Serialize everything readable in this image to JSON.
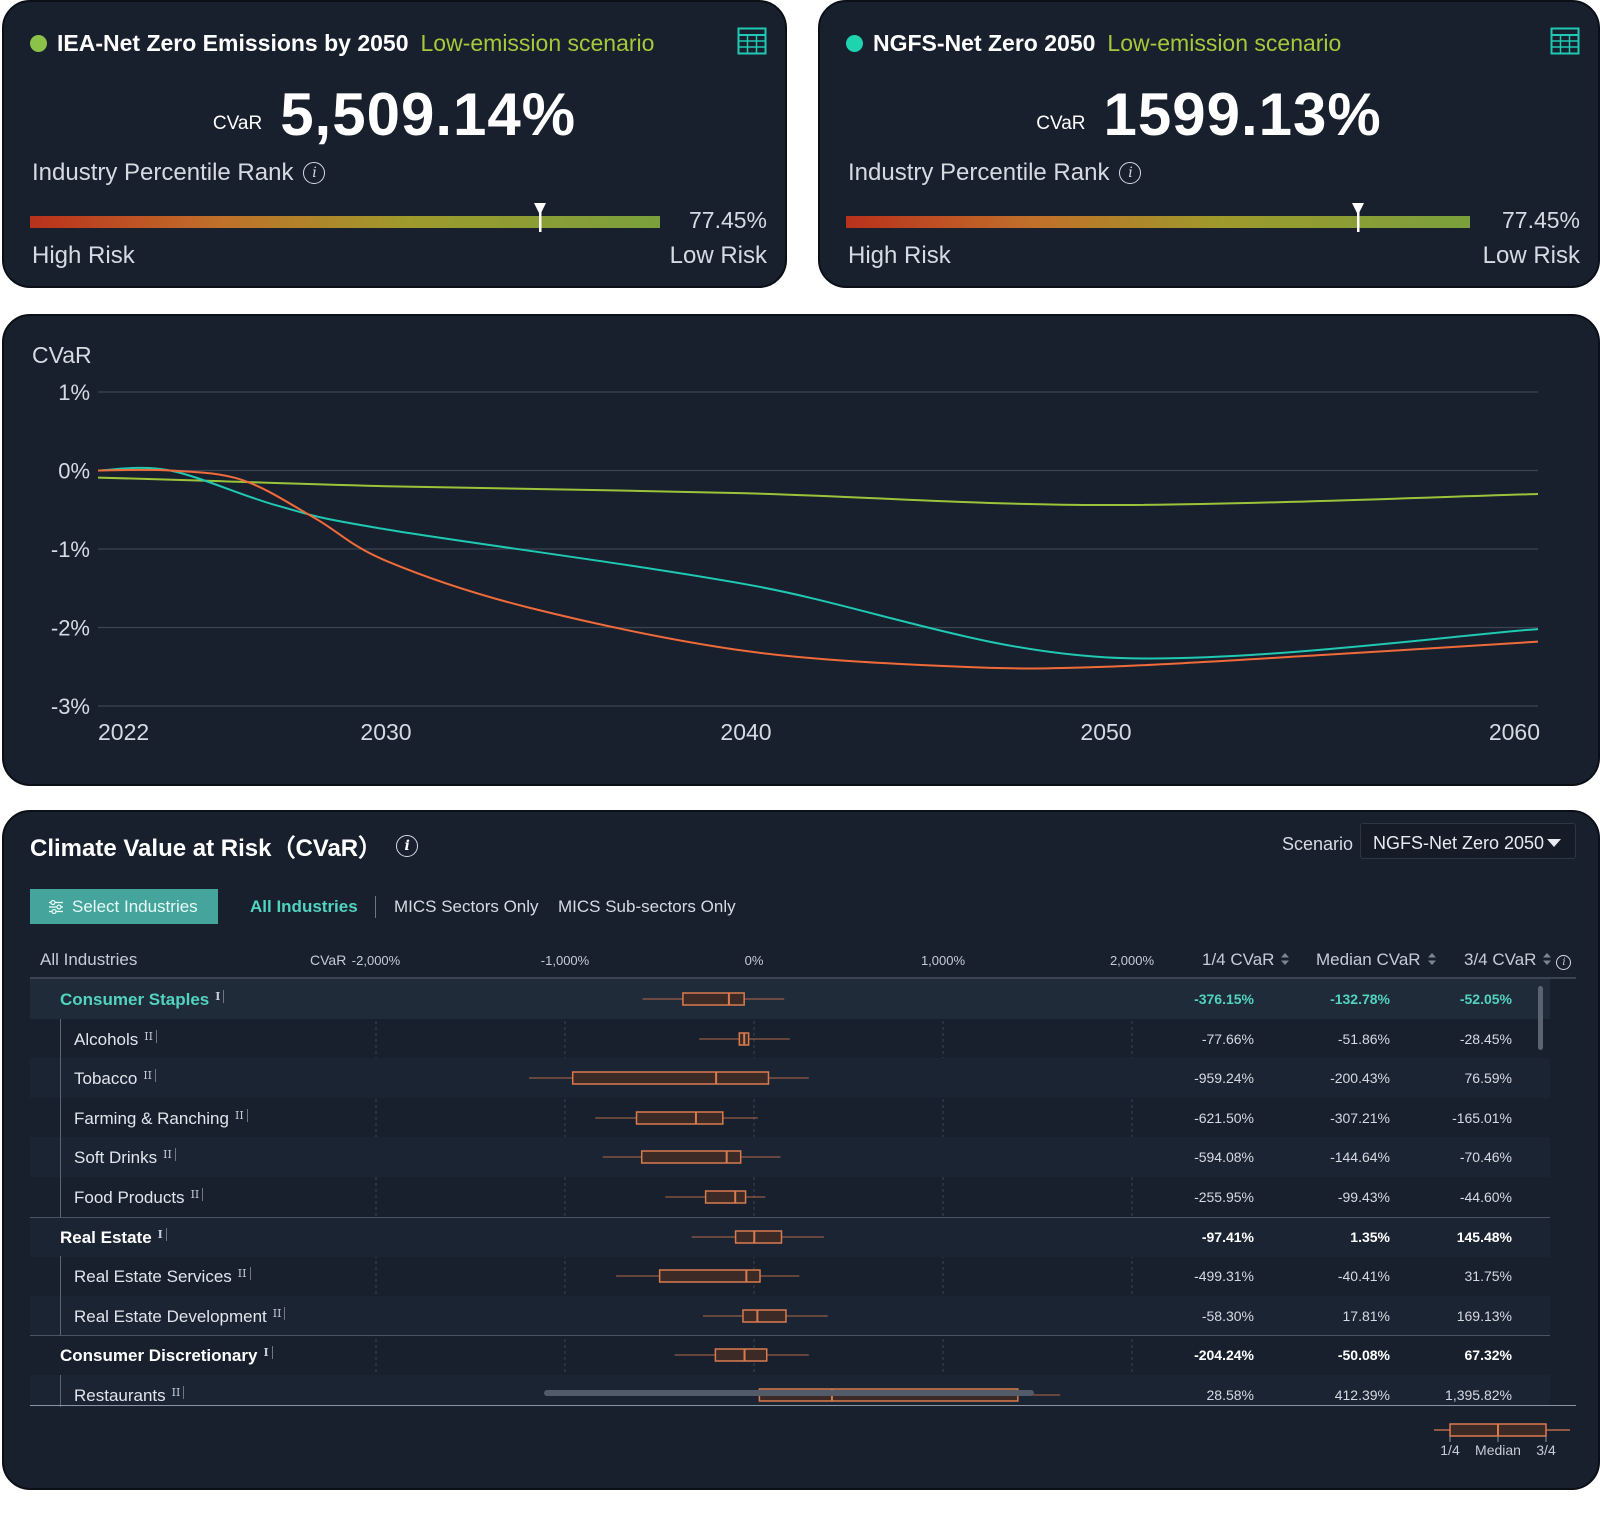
{
  "scenario_cards": [
    {
      "dot_color": "#8bc34a",
      "name": "IEA-Net Zero Emissions by 2050",
      "type": "Low-emission scenario",
      "cvar_label": "CVaR",
      "cvar_value": "5,509.14%",
      "rank_label": "Industry Percentile Rank",
      "rank_value": "77.45%",
      "rank_fraction": 0.81,
      "high_risk": "High Risk",
      "low_risk": "Low Risk",
      "icon": "table-icon"
    },
    {
      "dot_color": "#1dd3b0",
      "name": "NGFS-Net Zero 2050",
      "type": "Low-emission scenario",
      "cvar_label": "CVaR",
      "cvar_value": "1599.13%",
      "rank_label": "Industry Percentile Rank",
      "rank_value": "77.45%",
      "rank_fraction": 0.82,
      "high_risk": "High Risk",
      "low_risk": "Low Risk",
      "icon": "table-icon"
    }
  ],
  "chart_data": {
    "type": "line",
    "ylabel": "CVaR",
    "xlim": [
      2022,
      2062
    ],
    "ylim": [
      -3,
      1
    ],
    "x_ticks": [
      "2022",
      "2030",
      "2040",
      "2050",
      "2060"
    ],
    "y_ticks": [
      "1%",
      "0%",
      "-1%",
      "-2%",
      "-3%"
    ],
    "y_tick_values": [
      1,
      0,
      -1,
      -2,
      -3
    ],
    "x_tick_values": [
      2022,
      2030,
      2040,
      2050,
      2060
    ],
    "series": [
      {
        "color": "#9cc43a",
        "x": [
          2022,
          2025,
          2030,
          2040,
          2050,
          2062
        ],
        "y": [
          -0.09,
          -0.13,
          -0.2,
          -0.29,
          -0.44,
          -0.3
        ]
      },
      {
        "color": "#1fc9b3",
        "x": [
          2022,
          2024,
          2027,
          2030,
          2040,
          2050,
          2062
        ],
        "y": [
          0,
          0,
          -0.45,
          -0.75,
          -1.45,
          -2.38,
          -2.02
        ]
      },
      {
        "color": "#f06a3a",
        "x": [
          2022,
          2024,
          2026,
          2028,
          2030,
          2034,
          2040,
          2046,
          2050,
          2056,
          2062
        ],
        "y": [
          0,
          0,
          -0.12,
          -0.6,
          -1.15,
          -1.75,
          -2.3,
          -2.5,
          -2.5,
          -2.35,
          -2.18
        ]
      }
    ]
  },
  "cvar_table": {
    "title": "Climate Value at Risk（CVaR）",
    "scenario_label": "Scenario",
    "scenario_value": "NGFS-Net Zero 2050",
    "select_button": "Select Industries",
    "filters": [
      "All Industries",
      "MICS Sectors Only",
      "MICS Sub-sectors Only"
    ],
    "active_filter": "All Industries",
    "header": {
      "industry_col": "All Industries",
      "cvar_col": "CVaR",
      "axis_ticks": [
        "-2,000%",
        "-1,000%",
        "0%",
        "1,000%",
        "2,000%"
      ],
      "axis_tick_values": [
        -2000,
        -1000,
        0,
        1000,
        2000
      ],
      "q1": "1/4 CVaR",
      "median": "Median CVaR",
      "q3": "3/4 CVaR"
    },
    "box_color": "#d97b4f",
    "rows": [
      {
        "name": "Consumer Staples",
        "level": "I",
        "q1": "-376.15%",
        "median": "-132.78%",
        "q3": "-52.05%",
        "stats": [
          -590,
          -376.15,
          -132.78,
          -52.05,
          160
        ],
        "highlight": true
      },
      {
        "name": "Alcohols",
        "level": "II",
        "q1": "-77.66%",
        "median": "-51.86%",
        "q3": "-28.45%",
        "stats": [
          -290,
          -77.66,
          -51.86,
          -28.45,
          190
        ]
      },
      {
        "name": "Tobacco",
        "level": "II",
        "q1": "-959.24%",
        "median": "-200.43%",
        "q3": "76.59%",
        "stats": [
          -1190,
          -959.24,
          -200.43,
          76.59,
          290
        ]
      },
      {
        "name": "Farming & Ranching",
        "level": "II",
        "q1": "-621.50%",
        "median": "-307.21%",
        "q3": "-165.01%",
        "stats": [
          -840,
          -621.5,
          -307.21,
          -165.01,
          20
        ]
      },
      {
        "name": "Soft Drinks",
        "level": "II",
        "q1": "-594.08%",
        "median": "-144.64%",
        "q3": "-70.46%",
        "stats": [
          -800,
          -594.08,
          -144.64,
          -70.46,
          140
        ]
      },
      {
        "name": "Food Products",
        "level": "II",
        "q1": "-255.95%",
        "median": "-99.43%",
        "q3": "-44.60%",
        "stats": [
          -470,
          -255.95,
          -99.43,
          -44.6,
          60
        ]
      },
      {
        "name": "Real Estate",
        "level": "I",
        "q1": "-97.41%",
        "median": "1.35%",
        "q3": "145.48%",
        "stats": [
          -330,
          -97.41,
          1.35,
          145.48,
          370
        ]
      },
      {
        "name": "Real Estate Services",
        "level": "II",
        "q1": "-499.31%",
        "median": "-40.41%",
        "q3": "31.75%",
        "stats": [
          -730,
          -499.31,
          -40.41,
          31.75,
          240
        ]
      },
      {
        "name": "Real Estate Development",
        "level": "II",
        "q1": "-58.30%",
        "median": "17.81%",
        "q3": "169.13%",
        "stats": [
          -270,
          -58.3,
          17.81,
          169.13,
          390
        ]
      },
      {
        "name": "Consumer Discretionary",
        "level": "I",
        "q1": "-204.24%",
        "median": "-50.08%",
        "q3": "67.32%",
        "stats": [
          -420,
          -204.24,
          -50.08,
          67.32,
          290
        ]
      },
      {
        "name": "Restaurants",
        "level": "II",
        "q1": "28.58%",
        "median": "412.39%",
        "q3": "1,395.82%",
        "stats": [
          -160,
          28.58,
          412.39,
          1395.82,
          1620
        ]
      }
    ],
    "legend": {
      "q1": "1/4",
      "median": "Median",
      "q3": "3/4"
    }
  }
}
